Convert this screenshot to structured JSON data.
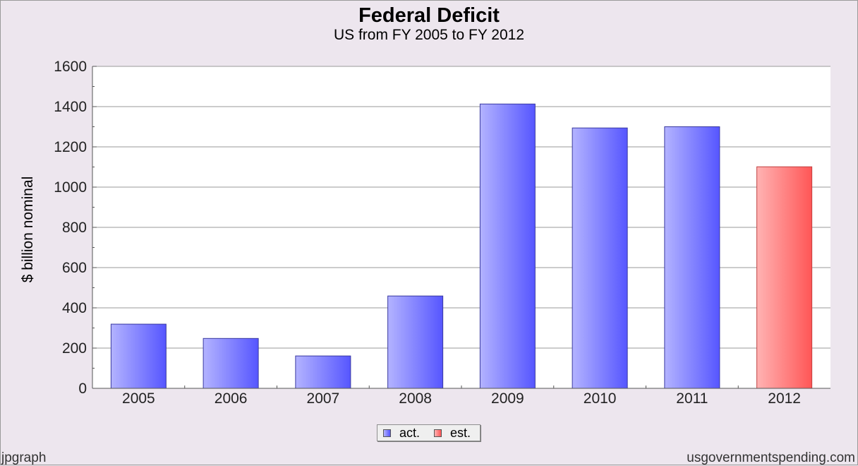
{
  "chart_data": {
    "type": "bar",
    "title": "Federal Deficit",
    "subtitle": "US from FY 2005 to FY 2012",
    "ylabel": "$ billion nominal",
    "xlabel": "",
    "ylim": [
      0,
      1600
    ],
    "yticks": [
      0,
      200,
      400,
      600,
      800,
      1000,
      1200,
      1400,
      1600
    ],
    "categories": [
      "2005",
      "2006",
      "2007",
      "2008",
      "2009",
      "2010",
      "2011",
      "2012"
    ],
    "values": [
      319,
      248,
      161,
      459,
      1413,
      1294,
      1300,
      1101
    ],
    "kinds": [
      "act.",
      "act.",
      "act.",
      "act.",
      "act.",
      "act.",
      "act.",
      "est."
    ],
    "grid": true,
    "legend": {
      "placement": "bottom-center",
      "items": [
        {
          "label": "act.",
          "color": "#6262ff"
        },
        {
          "label": "est.",
          "color": "#ff6262"
        }
      ]
    }
  },
  "footer": {
    "left": "jpgraph",
    "right": "usgovernmentspending.com"
  }
}
